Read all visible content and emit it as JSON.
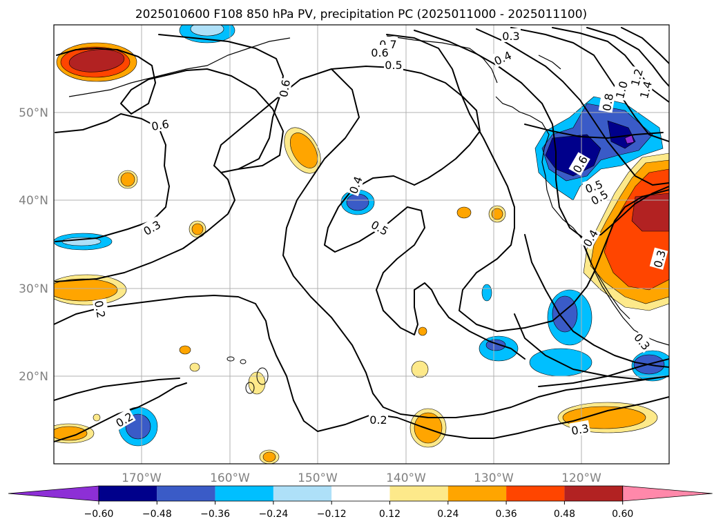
{
  "chart_data": {
    "type": "contour-map",
    "title": "2025010600 F108 850 hPa PV, precipitation PC (2025011000 - 2025011100)",
    "x_ticks": [
      "170°W",
      "160°W",
      "150°W",
      "140°W",
      "130°W",
      "120°W"
    ],
    "y_ticks": [
      "50°N",
      "40°N",
      "30°N",
      "20°N"
    ],
    "lon_range": [
      -180,
      -110
    ],
    "lat_range": [
      10,
      60
    ],
    "grid": true,
    "colorbar": {
      "orientation": "horizontal",
      "extend": "both",
      "levels": [
        -0.6,
        -0.48,
        -0.36,
        -0.24,
        -0.12,
        0.12,
        0.24,
        0.36,
        0.48,
        0.6
      ],
      "tick_labels": [
        "−0.60",
        "−0.48",
        "−0.36",
        "−0.24",
        "−0.12",
        "0.12",
        "0.24",
        "0.36",
        "0.48",
        "0.60"
      ],
      "colors": [
        "#8d2fd6",
        "#00008b",
        "#3a5bc7",
        "#00bfff",
        "#aee0f8",
        "#ffffff",
        "#fde98a",
        "#ffa500",
        "#ff4500",
        "#b22222",
        "#ff88aa"
      ]
    },
    "contour_labels": [
      "0.7",
      "0.6",
      "0.5",
      "0.3",
      "0.4",
      "0.6",
      "0.6",
      "0.4",
      "0.5",
      "0.5",
      "0.3",
      "0.2",
      "0.2",
      "0.2",
      "0.3",
      "1.0",
      "1.2",
      "1.4",
      "0.8",
      "0.6",
      "0.5",
      "0.4",
      "0.3",
      "0.3"
    ]
  }
}
